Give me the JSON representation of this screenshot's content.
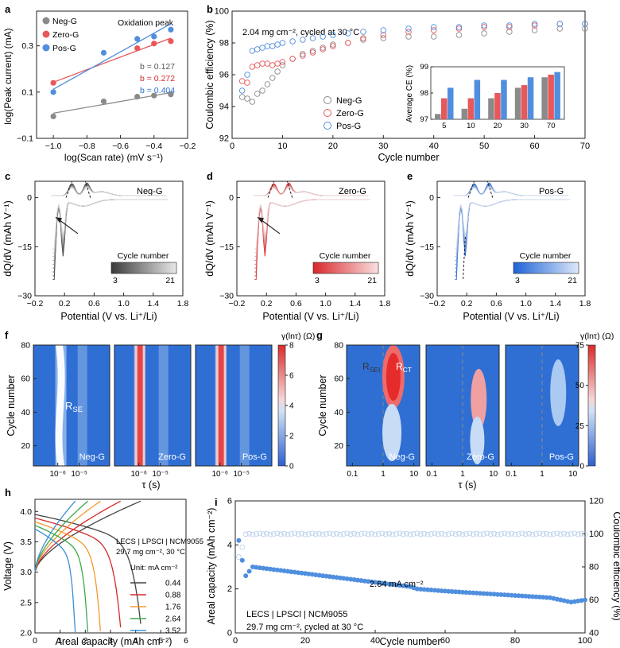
{
  "figure": {
    "panels": {
      "a": {
        "letter": "a",
        "xlabel": "log(Scan rate) (mV s⁻¹)",
        "ylabel": "log(Peak current) (mA)",
        "note": "Oxidation peak",
        "xticks": [
          "−1.0",
          "−0.8",
          "−0.6",
          "−0.4",
          "−0.2"
        ],
        "yticks": [
          "−0.1",
          "0.1",
          "0.3"
        ],
        "legend": [
          "Neg-G",
          "Zero-G",
          "Pos-G"
        ],
        "slopes": [
          "b = 0.127",
          "b = 0.272",
          "b = 0.404"
        ]
      },
      "b": {
        "letter": "b",
        "xlabel": "Cycle number",
        "ylabel": "Coulombic efficiency (%)",
        "note": "2.04 mg cm⁻², cycled at 30 °C",
        "xticks": [
          "0",
          "10",
          "20",
          "30",
          "40",
          "50",
          "60",
          "70"
        ],
        "yticks": [
          "92",
          "94",
          "96",
          "98",
          "100"
        ],
        "legend": [
          "Neg-G",
          "Zero-G",
          "Pos-G"
        ],
        "inset": {
          "ylabel": "Average CE (%)",
          "xticks": [
            "5",
            "10",
            "20",
            "30",
            "70"
          ],
          "yticks": [
            "97",
            "98",
            "99"
          ]
        }
      },
      "c": {
        "letter": "c",
        "name": "Neg-G",
        "xlabel": "Potential (V vs. Li⁺/Li)",
        "ylabel": "dQ/dV (mAh V⁻¹)",
        "xticks": [
          "−0.2",
          "0.2",
          "0.6",
          "1.0",
          "1.4",
          "1.8"
        ],
        "yticks": [
          "−30",
          "−15",
          "0"
        ],
        "cb_label": "Cycle number",
        "cb_min": "3",
        "cb_max": "21"
      },
      "d": {
        "letter": "d",
        "name": "Zero-G",
        "xlabel": "Potential (V vs. Li⁺/Li)",
        "ylabel": "dQ/dV (mAh V⁻¹)",
        "xticks": [
          "−0.2",
          "0.2",
          "0.6",
          "1.0",
          "1.4",
          "1.8"
        ],
        "yticks": [
          "−30",
          "−15",
          "0"
        ],
        "cb_label": "Cycle number",
        "cb_min": "3",
        "cb_max": "21"
      },
      "e": {
        "letter": "e",
        "name": "Pos-G",
        "xlabel": "Potential (V vs. Li⁺/Li)",
        "ylabel": "dQ/dV (mAh V⁻¹)",
        "xticks": [
          "−0.2",
          "0.2",
          "0.6",
          "1.0",
          "1.4",
          "1.8"
        ],
        "yticks": [
          "−30",
          "−15",
          "0"
        ],
        "cb_label": "Cycle number",
        "cb_min": "3",
        "cb_max": "21"
      },
      "f": {
        "letter": "f",
        "xlabel": "τ (s)",
        "ylabel": "Cycle number",
        "cb_title": "γ(lnτ) (Ω)",
        "cb_ticks": [
          "0",
          "2",
          "4",
          "6",
          "8"
        ],
        "yticks": [
          "20",
          "40",
          "60",
          "80"
        ],
        "xticks": [
          "10⁻⁶",
          "10⁻⁵"
        ],
        "maps": [
          "Neg-G",
          "Zero-G",
          "Pos-G"
        ],
        "annot": "RSE"
      },
      "g": {
        "letter": "g",
        "xlabel": "τ (s)",
        "ylabel": "Cycle number",
        "cb_title": "γ(lnτ) (Ω)",
        "cb_ticks": [
          "0",
          "25",
          "50",
          "75"
        ],
        "yticks": [
          "20",
          "40",
          "60",
          "80"
        ],
        "xticks": [
          "0.1",
          "1",
          "10"
        ],
        "maps": [
          "Neg-G",
          "Zero-G",
          "Pos-G"
        ],
        "annot_sei": "RSEI",
        "annot_ct": "RCT"
      },
      "h": {
        "letter": "h",
        "xlabel": "Areal capacity (mAh cm⁻²)",
        "ylabel": "Voltage (V)",
        "note1": "LECS | LPSCl | NCM9055",
        "note2": "29.7 mg cm⁻², 30 °C",
        "unit": "Unit: mA cm⁻²",
        "xticks": [
          "0",
          "1",
          "2",
          "3",
          "4",
          "5",
          "6"
        ],
        "yticks": [
          "2.0",
          "2.5",
          "3.0",
          "3.5",
          "4.0"
        ],
        "legend": [
          "0.44",
          "0.88",
          "1.76",
          "2.64",
          "3.52"
        ]
      },
      "i": {
        "letter": "i",
        "xlabel": "Cycle number",
        "ylabel": "Areal capacity (mAh cm⁻²)",
        "ylabel2": "Coulombic efficiency (%)",
        "rate": "2.64 mA cm⁻²",
        "note1": "LECS | LPSCl | NCM9055",
        "note2": "29.7 mg cm⁻², cycled at 30 °C",
        "xticks": [
          "0",
          "20",
          "40",
          "60",
          "80",
          "100"
        ],
        "yticks": [
          "0",
          "2",
          "4",
          "6"
        ],
        "y2ticks": [
          "40",
          "60",
          "80",
          "100",
          "120"
        ]
      }
    }
  },
  "colors": {
    "neg": "#8a8a8a",
    "zero": "#e8575a",
    "pos": "#4f8fde"
  },
  "chart_data": [
    {
      "panel": "a",
      "type": "scatter",
      "series": [
        {
          "name": "Neg-G",
          "x": [
            -1.0,
            -0.7,
            -0.5,
            -0.4,
            -0.3
          ],
          "y": [
            -0.005,
            0.06,
            0.08,
            0.085,
            0.09
          ],
          "slope": 0.127
        },
        {
          "name": "Zero-G",
          "x": [
            -1.0,
            -0.5,
            -0.4,
            -0.3
          ],
          "y": [
            0.14,
            0.29,
            0.31,
            0.32
          ],
          "slope": 0.272
        },
        {
          "name": "Pos-G",
          "x": [
            -1.0,
            -0.7,
            -0.5,
            -0.4,
            -0.3
          ],
          "y": [
            0.1,
            0.27,
            0.33,
            0.34,
            0.37
          ],
          "slope": 0.404
        }
      ],
      "xlim": [
        -1.1,
        -0.2
      ],
      "ylim": [
        -0.1,
        0.45
      ]
    },
    {
      "panel": "b",
      "type": "scatter",
      "xlim": [
        0,
        70
      ],
      "ylim": [
        92,
        100
      ],
      "series": [
        {
          "name": "Neg-G",
          "x": [
            2,
            3,
            4,
            5,
            6,
            7,
            8,
            9,
            10,
            12,
            14,
            16,
            18,
            20,
            23,
            26,
            30,
            35,
            40,
            45,
            50,
            55,
            60,
            65,
            70
          ],
          "y": [
            94.6,
            94.5,
            94.3,
            94.8,
            95.0,
            95.4,
            95.8,
            96.2,
            96.6,
            97.0,
            97.3,
            97.5,
            97.7,
            97.9,
            98.0,
            98.2,
            98.3,
            98.4,
            98.4,
            98.5,
            98.6,
            98.7,
            98.8,
            98.9,
            98.9
          ]
        },
        {
          "name": "Zero-G",
          "x": [
            2,
            3,
            4,
            5,
            6,
            7,
            8,
            9,
            10,
            12,
            14,
            16,
            18,
            20,
            23,
            26,
            30,
            35,
            40,
            45,
            50,
            55,
            60,
            65,
            70
          ],
          "y": [
            95.6,
            95.5,
            96.5,
            96.6,
            96.7,
            96.7,
            96.6,
            96.7,
            96.8,
            97.0,
            97.2,
            97.4,
            97.6,
            97.8,
            98.0,
            98.3,
            98.5,
            98.7,
            98.8,
            98.9,
            99.0,
            99.0,
            99.1,
            99.2,
            99.2
          ]
        },
        {
          "name": "Pos-G",
          "x": [
            2,
            3,
            4,
            5,
            6,
            7,
            8,
            9,
            10,
            12,
            14,
            16,
            18,
            20,
            23,
            26,
            30,
            35,
            40,
            45,
            50,
            55,
            60,
            65,
            70
          ],
          "y": [
            95.0,
            96.0,
            97.5,
            97.6,
            97.7,
            97.8,
            97.8,
            97.9,
            98.0,
            98.1,
            98.2,
            98.3,
            98.4,
            98.5,
            98.6,
            98.7,
            98.8,
            98.9,
            99.0,
            99.0,
            99.1,
            99.1,
            99.2,
            99.2,
            99.2
          ]
        }
      ]
    },
    {
      "panel": "b-inset",
      "type": "bar",
      "categories": [
        "5",
        "10",
        "20",
        "30",
        "70"
      ],
      "ylim": [
        97,
        99
      ],
      "series": [
        {
          "name": "Neg-G",
          "values": [
            97.2,
            97.4,
            97.8,
            98.2,
            98.6
          ]
        },
        {
          "name": "Zero-G",
          "values": [
            97.8,
            97.8,
            98.0,
            98.3,
            98.7
          ]
        },
        {
          "name": "Pos-G",
          "values": [
            98.2,
            98.5,
            98.5,
            98.6,
            98.8
          ]
        }
      ]
    },
    {
      "panel": "c-e",
      "type": "line",
      "x": "Potential (V vs. Li⁺/Li)",
      "xlim": [
        -0.2,
        1.8
      ],
      "ylim": [
        -30,
        5
      ],
      "cycles": [
        3,
        21
      ],
      "peaks": {
        "reduction_V": [
          0.05,
          0.18
        ],
        "oxidation_V": [
          0.3,
          0.5
        ]
      }
    },
    {
      "panel": "f",
      "type": "heatmap",
      "xlim_log10": [
        -6.6,
        -4.3
      ],
      "ylim": [
        8,
        80
      ],
      "zlim": [
        0,
        8
      ]
    },
    {
      "panel": "g",
      "type": "heatmap",
      "xlim_log10": [
        -1.2,
        1.2
      ],
      "ylim": [
        8,
        80
      ],
      "zlim": [
        0,
        75
      ]
    },
    {
      "panel": "h",
      "type": "line",
      "xlim": [
        0,
        6
      ],
      "ylim": [
        2,
        4.2
      ],
      "series": [
        {
          "name": "0.44",
          "discharge_capacity": 4.2
        },
        {
          "name": "0.88",
          "discharge_capacity": 3.4
        },
        {
          "name": "1.76",
          "discharge_capacity": 2.6
        },
        {
          "name": "2.64",
          "discharge_capacity": 2.1
        },
        {
          "name": "3.52",
          "discharge_capacity": 1.6
        }
      ]
    },
    {
      "panel": "i",
      "type": "scatter",
      "xlim": [
        0,
        100
      ],
      "ylim": [
        0,
        6
      ],
      "y2lim": [
        40,
        120
      ],
      "series": [
        {
          "name": "Areal capacity",
          "x": [
            1,
            2,
            3,
            5,
            10,
            20,
            30,
            40,
            50,
            52,
            60,
            70,
            80,
            90,
            96,
            100
          ],
          "y": [
            4.2,
            3.3,
            2.6,
            3.0,
            2.9,
            2.7,
            2.5,
            2.3,
            2.1,
            2.0,
            1.9,
            1.8,
            1.7,
            1.6,
            1.4,
            1.5
          ]
        },
        {
          "name": "Coulombic efficiency",
          "x": [
            1,
            3,
            5,
            10,
            20,
            40,
            60,
            80,
            100
          ],
          "y": [
            86,
            98,
            100,
            100,
            100,
            100,
            100,
            100,
            100
          ]
        }
      ]
    }
  ]
}
